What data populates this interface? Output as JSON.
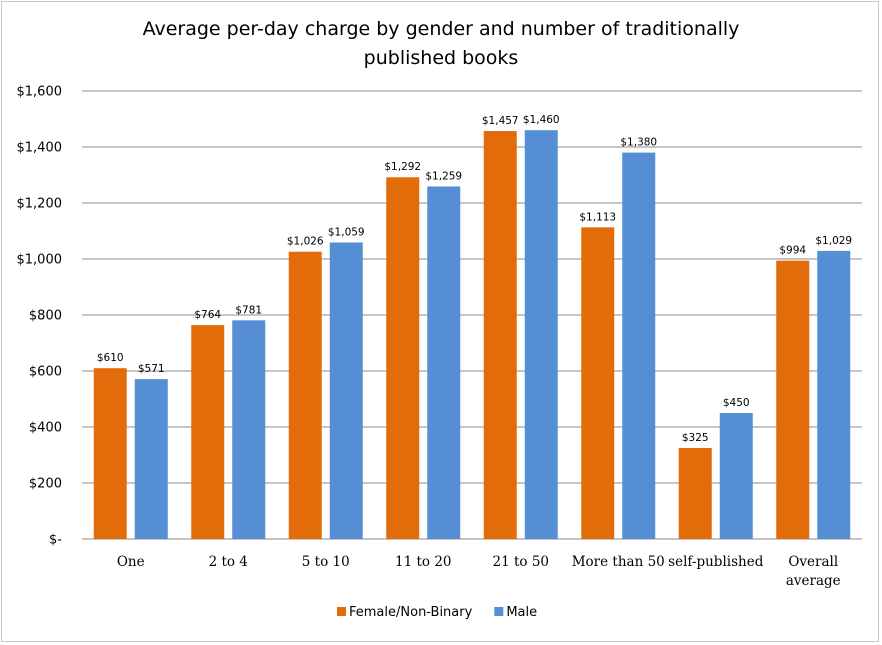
{
  "chart_data": {
    "type": "bar",
    "title_lines": [
      "Average per-day charge by gender and number of traditionally",
      "published books"
    ],
    "categories": [
      [
        "One"
      ],
      [
        "2 to 4"
      ],
      [
        "5 to 10"
      ],
      [
        "11 to 20"
      ],
      [
        "21 to 50"
      ],
      [
        "More than 50"
      ],
      [
        "self-published"
      ],
      [
        "Overall",
        "average"
      ]
    ],
    "series": [
      {
        "name": "Female/Non-Binary",
        "color": "#E36C0A",
        "values": [
          610,
          764,
          1026,
          1292,
          1457,
          1113,
          325,
          994
        ],
        "labels": [
          "$610",
          "$764",
          "$1,026",
          "$1,292",
          "$1,457",
          "$1,113",
          "$325",
          "$994"
        ]
      },
      {
        "name": "Male",
        "color": "#558ED5",
        "values": [
          571,
          781,
          1059,
          1259,
          1460,
          1380,
          450,
          1029
        ],
        "labels": [
          "$571",
          "$781",
          "$1,059",
          "$1,259",
          "$1,460",
          "$1,380",
          "$450",
          "$1,029"
        ]
      }
    ],
    "ylim": [
      0,
      1600
    ],
    "yticks": [
      0,
      200,
      400,
      600,
      800,
      1000,
      1200,
      1400,
      1600
    ],
    "ytick_labels": [
      "$-",
      "$200",
      "$400",
      "$600",
      "$800",
      "$1,000",
      "$1,200",
      "$1,400",
      "$1,600"
    ],
    "grid": true,
    "legend_position": "bottom"
  }
}
